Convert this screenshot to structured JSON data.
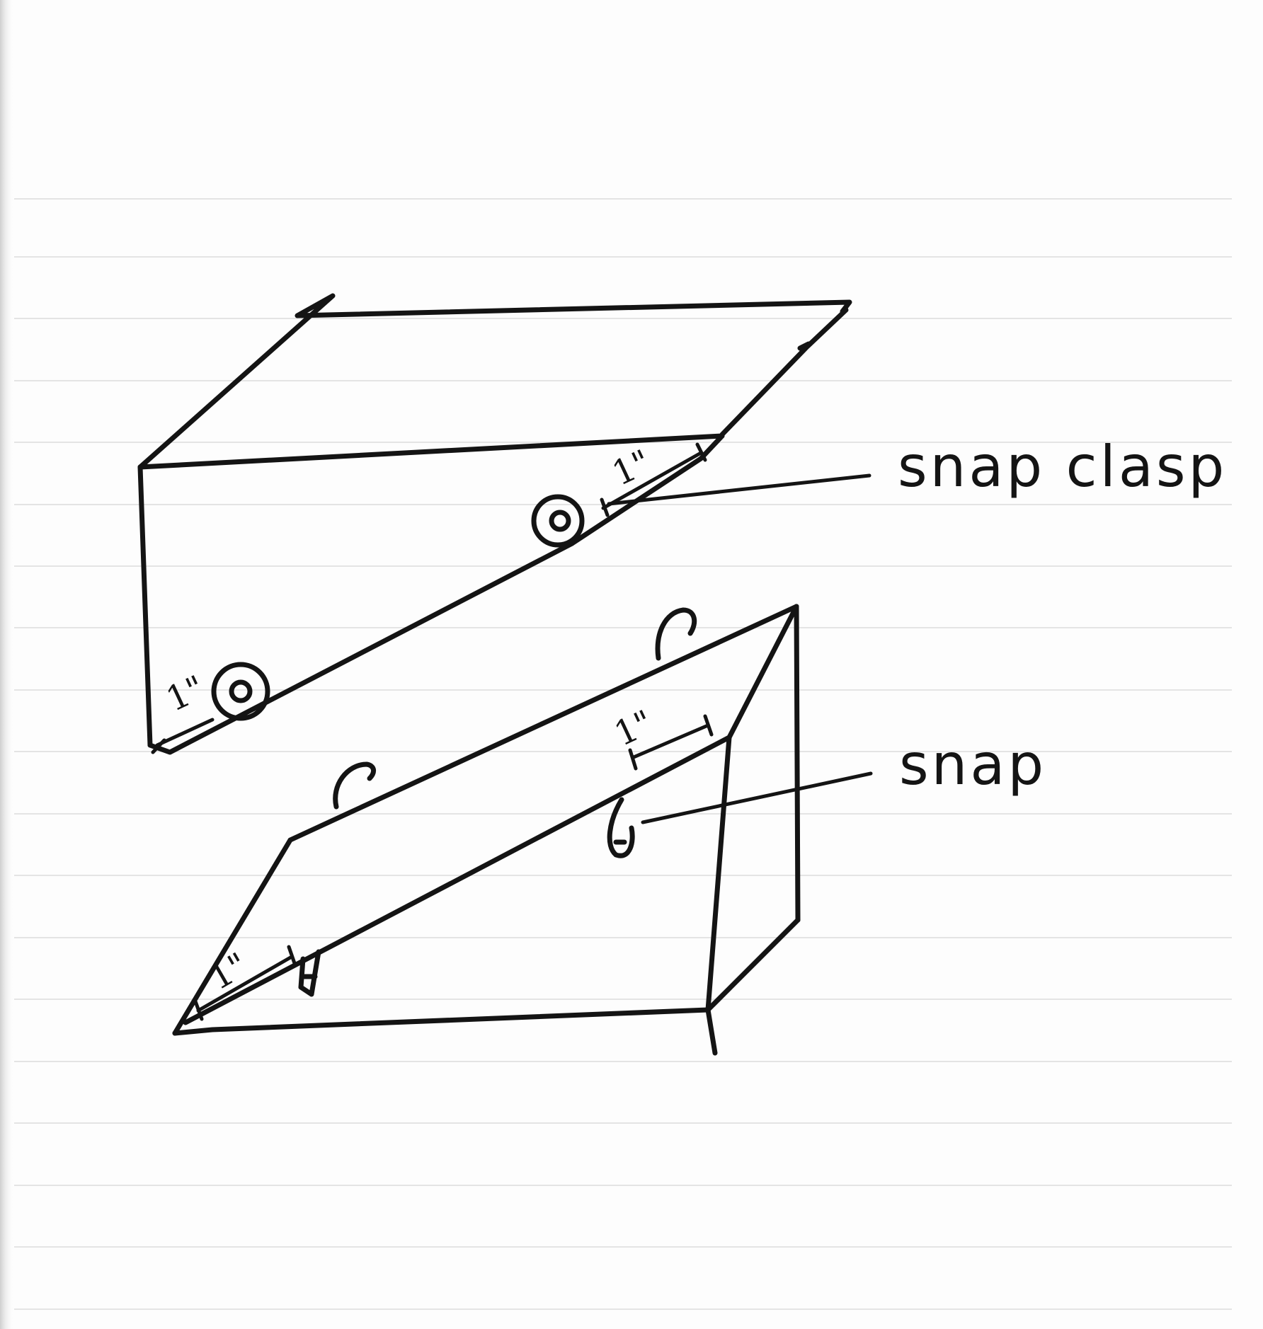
{
  "labels": {
    "snap_clasp": "snap clasp",
    "snap": "snap"
  },
  "dimensions": {
    "lid_front_clasp": "1\"",
    "lid_back_clasp": "1\"",
    "base_front_snap": "1\"",
    "base_back_snap": "1\""
  },
  "colors": {
    "paper": "#fdfdfd",
    "ink": "#141414",
    "ruled_line": "#e4e4e4",
    "binding_shadow": "#cfcfcf"
  }
}
